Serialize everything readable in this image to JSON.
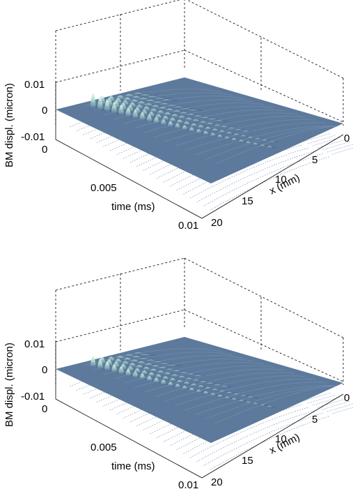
{
  "chart_data": [
    {
      "type": "surface",
      "zlabel": "BM displ. (micron)",
      "ylabel": "time (ms)",
      "xlabel": "x (mm)",
      "z_ticks": [
        "0.01",
        "0",
        "-0.01"
      ],
      "time_ticks": [
        "0",
        "0.005",
        "0.01"
      ],
      "x_ticks": [
        "0",
        "5",
        "10",
        "15",
        "20"
      ],
      "xlim": [
        0,
        20
      ],
      "time_lim": [
        0,
        0.01
      ],
      "zlim": [
        -0.01,
        0.01
      ],
      "colormap": [
        "#5d7a9c",
        "#d9f6ea"
      ]
    },
    {
      "type": "surface",
      "zlabel": "BM displ. (micron)",
      "ylabel": "time (ms)",
      "xlabel": "x (mm)",
      "z_ticks": [
        "0.01",
        "0",
        "-0.01"
      ],
      "time_ticks": [
        "0",
        "0.005",
        "0.01"
      ],
      "x_ticks": [
        "0",
        "5",
        "10",
        "15",
        "20"
      ],
      "xlim": [
        0,
        20
      ],
      "time_lim": [
        0,
        0.01
      ],
      "zlim": [
        -0.01,
        0.01
      ],
      "colormap": [
        "#5d7a9c",
        "#d9f6ea"
      ]
    }
  ]
}
